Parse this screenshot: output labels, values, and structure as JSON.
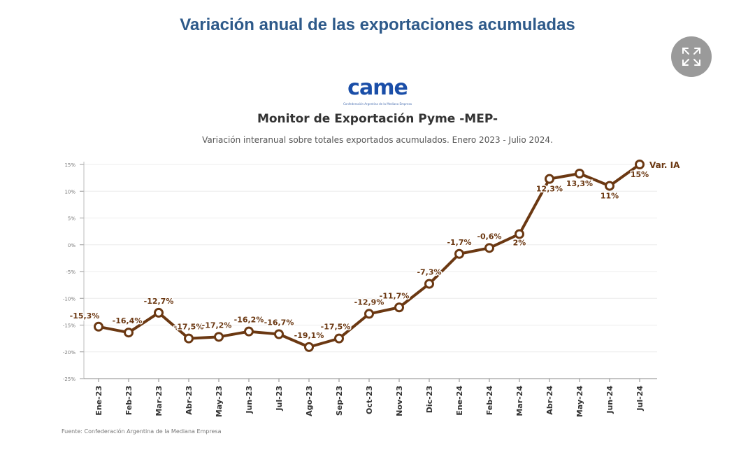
{
  "page": {
    "title": "Variación anual de las exportaciones acumuladas"
  },
  "expand_control": {
    "icon": "expand-icon"
  },
  "logo": {
    "text": "came",
    "tagline": "Confederación Argentina de la Mediana Empresa",
    "color": "#1a4ea8"
  },
  "source": {
    "text": "Fuente: Confederación Argentina de la Mediana Empresa"
  },
  "chart_data": {
    "type": "line",
    "title": "Monitor de Exportación Pyme -MEP-",
    "subtitle": "Variación interanual sobre totales exportados acumulados. Enero 2023 - Julio 2024.",
    "xlabel": "",
    "ylabel": "",
    "ylim": [
      -25,
      15
    ],
    "yticks": [
      15,
      10,
      5,
      0,
      -5,
      -10,
      -15,
      -20,
      -25
    ],
    "ytick_labels": [
      "15%",
      "10%",
      "5%",
      "0%",
      "-5%",
      "-10%",
      "-15%",
      "-20%",
      "-25%"
    ],
    "grid": true,
    "categories": [
      "Ene-23",
      "Feb-23",
      "Mar-23",
      "Abr-23",
      "May-23",
      "Jun-23",
      "Jul-23",
      "Ago-23",
      "Sep-23",
      "Oct-23",
      "Nov-23",
      "Dic-23",
      "Ene-24",
      "Feb-24",
      "Mar-24",
      "Abr-24",
      "May-24",
      "Jun-24",
      "Jul-24"
    ],
    "series": [
      {
        "name": "Var. IA",
        "color": "#6b3812",
        "values": [
          -15.3,
          -16.4,
          -12.7,
          -17.5,
          -17.2,
          -16.2,
          -16.7,
          -19.1,
          -17.5,
          -12.9,
          -11.7,
          -7.3,
          -1.7,
          -0.6,
          2,
          12.3,
          13.3,
          11,
          15
        ],
        "labels": [
          "-15,3%",
          "-16,4%",
          "-12,7%",
          "-17,5%",
          "-17,2%",
          "-16,2%",
          "-16,7%",
          "-19,1%",
          "-17,5%",
          "-12,9%",
          "-11,7%",
          "-7,3%",
          "-1,7%",
          "-0,6%",
          "2%",
          "12,3%",
          "13,3%",
          "11%",
          "15%"
        ]
      }
    ]
  }
}
